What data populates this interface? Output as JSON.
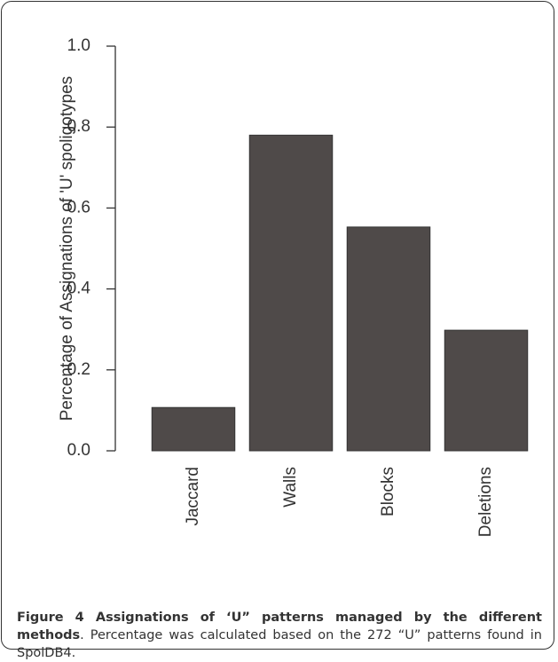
{
  "chart_data": {
    "type": "bar",
    "y_label": "Percentage of Assignations of 'U' spoligotypes",
    "categories": [
      "Jaccard",
      "Walls",
      "Blocks",
      "Deletions"
    ],
    "values": [
      0.107,
      0.78,
      0.553,
      0.298
    ],
    "color": "#4f4a49",
    "ylim": [
      0,
      1
    ],
    "yticks": [
      {
        "value": 0,
        "label": "0.0"
      },
      {
        "value": 0.2,
        "label": "0.2"
      },
      {
        "value": 0.4,
        "label": "0.4"
      },
      {
        "value": 0.6,
        "label": "0.6"
      },
      {
        "value": 0.8,
        "label": "0.8"
      },
      {
        "value": 1,
        "label": "1.0"
      }
    ],
    "grid": false
  },
  "caption": {
    "label": "Figure 4",
    "title": "Assignations of ‘U” patterns managed by the different methods",
    "text": ". Percentage was calculated based on the 272 “U” patterns found in SpolDB4."
  }
}
